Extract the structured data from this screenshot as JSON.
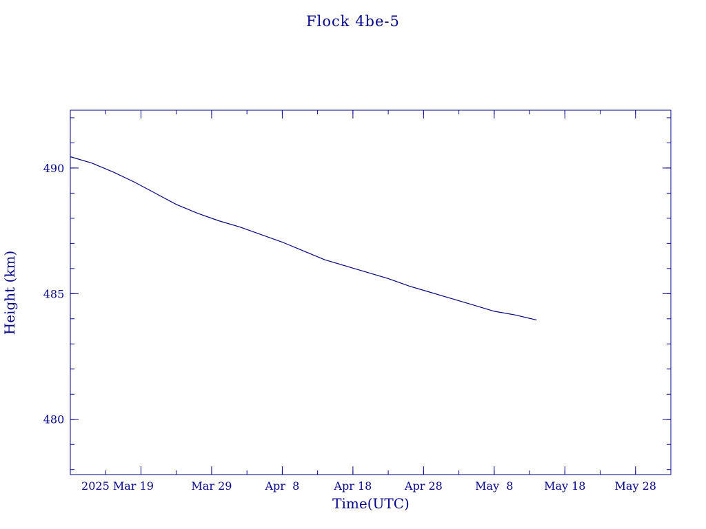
{
  "chart_data": {
    "type": "line",
    "title": "Flock 4be-5",
    "xlabel": "Time(UTC)",
    "ylabel": "Height (km)",
    "colors": {
      "text": "#00008b",
      "line": "#000080",
      "background": "#ffffff"
    },
    "xlim": [
      "2025-03-09",
      "2025-06-02"
    ],
    "ylim": [
      477.8,
      492.3
    ],
    "grid": false,
    "x_ticks": [
      {
        "date": "2025-03-19",
        "label": "2025 Mar 19"
      },
      {
        "date": "2025-03-29",
        "label": "Mar 29"
      },
      {
        "date": "2025-04-08",
        "label": "Apr  8"
      },
      {
        "date": "2025-04-18",
        "label": "Apr 18"
      },
      {
        "date": "2025-04-28",
        "label": "Apr 28"
      },
      {
        "date": "2025-05-08",
        "label": "May  8"
      },
      {
        "date": "2025-05-18",
        "label": "May 18"
      },
      {
        "date": "2025-05-28",
        "label": "May 28"
      }
    ],
    "x_minor_tick_step_days": 5,
    "y_ticks": [
      {
        "value": 480,
        "label": "480"
      },
      {
        "value": 485,
        "label": "485"
      },
      {
        "value": 490,
        "label": "490"
      }
    ],
    "y_minor_tick_step": 1,
    "series": [
      {
        "x": [
          "2025-03-09",
          "2025-03-12",
          "2025-03-15",
          "2025-03-18",
          "2025-03-21",
          "2025-03-24",
          "2025-03-27",
          "2025-03-30",
          "2025-04-02",
          "2025-04-05",
          "2025-04-08",
          "2025-04-11",
          "2025-04-14",
          "2025-04-17",
          "2025-04-20",
          "2025-04-23",
          "2025-04-26",
          "2025-04-29",
          "2025-05-02",
          "2025-05-05",
          "2025-05-08",
          "2025-05-11",
          "2025-05-14"
        ],
        "y": [
          490.45,
          490.2,
          489.85,
          489.45,
          489.0,
          488.55,
          488.2,
          487.9,
          487.65,
          487.35,
          487.05,
          486.7,
          486.35,
          486.1,
          485.85,
          485.6,
          485.3,
          485.05,
          484.8,
          484.55,
          484.3,
          484.15,
          483.95
        ]
      }
    ]
  }
}
